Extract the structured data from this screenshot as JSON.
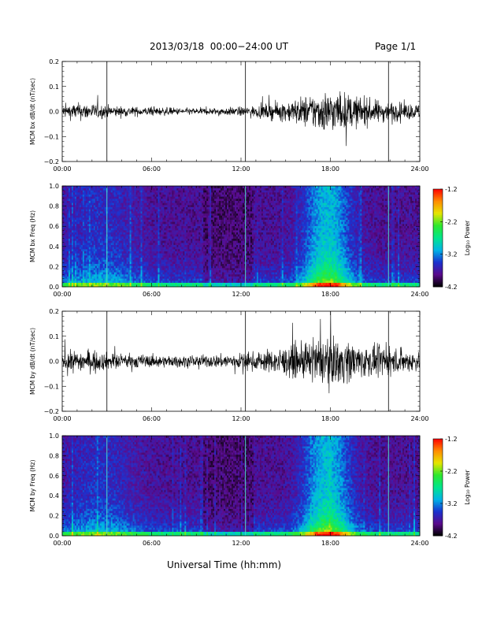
{
  "header": {
    "title": "2013/03/18  00:00−24:00 UT",
    "page": "Page 1/1"
  },
  "xlabel": "Universal Time (hh:mm)",
  "x_ticks": [
    "00:00",
    "06:00",
    "12:00",
    "18:00",
    "24:00"
  ],
  "colorbar": {
    "label": "Log₁₀ Power",
    "ticks": [
      "-1.2",
      "-2.2",
      "-3.2",
      "-4.2"
    ],
    "range": [
      -4.2,
      -1.2
    ],
    "colormap": [
      "#000000",
      "#5a0a8c",
      "#1a32d0",
      "#00b4e6",
      "#00e68c",
      "#2ee82e",
      "#e6e600",
      "#ff8c00",
      "#ff0000"
    ]
  },
  "colors": {
    "trace": "#000000",
    "spike_line": "#4fd8c8"
  },
  "chart_data": [
    {
      "type": "line",
      "ylabel": "MCM bx dB/dt (nT/sec)",
      "xlim": [
        0,
        24
      ],
      "ylim": [
        -0.2,
        0.2
      ],
      "y_ticks": [
        "0.2",
        "0.1",
        "0.0",
        "−0.1",
        "−0.2"
      ],
      "amplitude_envelope": {
        "hours": [
          0,
          1,
          2,
          3,
          4,
          5,
          6,
          7,
          8,
          9,
          10,
          11,
          12,
          13,
          14,
          15,
          16,
          17,
          18,
          19,
          20,
          21,
          22,
          23,
          24
        ],
        "amplitude": [
          0.022,
          0.03,
          0.028,
          0.022,
          0.018,
          0.016,
          0.015,
          0.014,
          0.012,
          0.012,
          0.012,
          0.014,
          0.016,
          0.02,
          0.028,
          0.035,
          0.05,
          0.065,
          0.075,
          0.065,
          0.05,
          0.04,
          0.035,
          0.03,
          0.025
        ]
      },
      "spikes_hours": [
        3.0,
        12.3,
        21.9
      ]
    },
    {
      "type": "heatmap",
      "ylabel": "MCM bx Freq (Hz)",
      "xlim": [
        0,
        24
      ],
      "ylim": [
        0.0,
        1.0
      ],
      "y_ticks": [
        "1.0",
        "0.8",
        "0.6",
        "0.4",
        "0.2",
        "0.0"
      ],
      "z_range": [
        -4.2,
        -1.2
      ]
    },
    {
      "type": "line",
      "ylabel": "MCM by dB/dt (nT/sec)",
      "xlim": [
        0,
        24
      ],
      "ylim": [
        -0.2,
        0.2
      ],
      "y_ticks": [
        "0.2",
        "0.1",
        "0.0",
        "−0.1",
        "−0.2"
      ],
      "amplitude_envelope": {
        "hours": [
          0,
          1,
          2,
          3,
          4,
          5,
          6,
          7,
          8,
          9,
          10,
          11,
          12,
          13,
          14,
          15,
          16,
          17,
          18,
          19,
          20,
          21,
          22,
          23,
          24
        ],
        "amplitude": [
          0.03,
          0.04,
          0.035,
          0.03,
          0.025,
          0.024,
          0.022,
          0.02,
          0.02,
          0.02,
          0.022,
          0.025,
          0.028,
          0.032,
          0.04,
          0.05,
          0.06,
          0.075,
          0.085,
          0.075,
          0.06,
          0.05,
          0.045,
          0.04,
          0.035
        ]
      },
      "spikes_hours": [
        3.0,
        12.3,
        21.9
      ]
    },
    {
      "type": "heatmap",
      "ylabel": "MCM by Freq (Hz)",
      "xlim": [
        0,
        24
      ],
      "ylim": [
        0.0,
        1.0
      ],
      "y_ticks": [
        "1.0",
        "0.8",
        "0.6",
        "0.4",
        "0.2",
        "0.0"
      ],
      "z_range": [
        -4.2,
        -1.2
      ]
    }
  ]
}
